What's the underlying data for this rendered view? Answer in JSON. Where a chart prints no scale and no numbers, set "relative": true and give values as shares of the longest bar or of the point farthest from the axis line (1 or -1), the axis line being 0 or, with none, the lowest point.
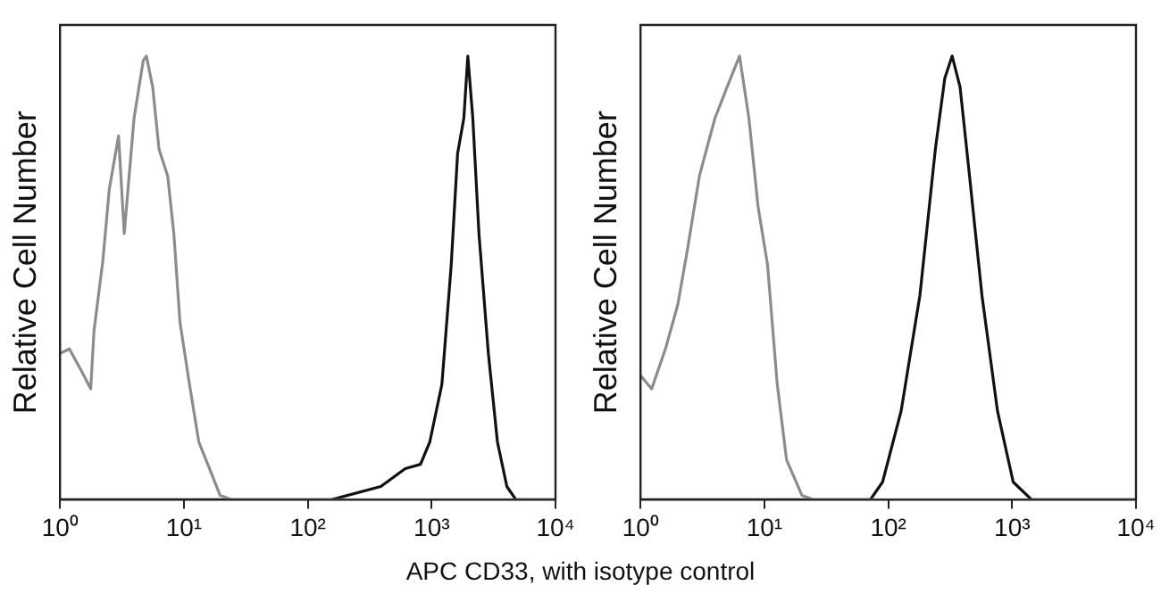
{
  "chart_data": [
    {
      "type": "line",
      "relative": true,
      "log": "x",
      "grid": false,
      "legend": false,
      "marker": "none",
      "line_style": "solid",
      "ylabel": "Relative Cell Number",
      "xlabel": "APC CD33, with isotype control",
      "xlim": [
        1,
        10000
      ],
      "xticks": [
        {
          "value": 1,
          "label": "10⁰"
        },
        {
          "value": 10,
          "label": "10¹"
        },
        {
          "value": 100,
          "label": "10²"
        },
        {
          "value": 1000,
          "label": "10³"
        },
        {
          "value": 10000,
          "label": "10⁴"
        }
      ],
      "series": [
        {
          "color": "#8c8c8c",
          "x": [
            1,
            1.19,
            1.49,
            1.77,
            1.88,
            2.22,
            2.5,
            2.97,
            3.3,
            3.96,
            4.7,
            4.98,
            5.6,
            6.3,
            7.4,
            8.3,
            9.3,
            11.1,
            13.2,
            15.6,
            19.6,
            24.6,
            10000
          ],
          "values": [
            0.33,
            0.34,
            0.29,
            0.25,
            0.38,
            0.54,
            0.7,
            0.82,
            0.6,
            0.86,
            0.99,
            1,
            0.93,
            0.79,
            0.73,
            0.6,
            0.4,
            0.26,
            0.13,
            0.08,
            0.01,
            0,
            0
          ]
        },
        {
          "color": "#111111",
          "x": [
            1,
            155,
            389,
            612,
            813,
            966,
            1210,
            1440,
            1620,
            1820,
            1960,
            2150,
            2410,
            2870,
            3400,
            4050,
            4800,
            10000
          ],
          "values": [
            0,
            0,
            0.03,
            0.07,
            0.08,
            0.13,
            0.26,
            0.53,
            0.78,
            0.86,
            1,
            0.86,
            0.6,
            0.33,
            0.13,
            0.03,
            0,
            0
          ]
        }
      ]
    },
    {
      "type": "line",
      "relative": true,
      "log": "x",
      "grid": false,
      "legend": false,
      "marker": "none",
      "line_style": "solid",
      "ylabel": "Relative Cell Number",
      "xlim": [
        1,
        10000
      ],
      "xticks": [
        {
          "value": 1,
          "label": "10⁰"
        },
        {
          "value": 10,
          "label": "10¹"
        },
        {
          "value": 100,
          "label": "10²"
        },
        {
          "value": 1000,
          "label": "10³"
        },
        {
          "value": 10000,
          "label": "10⁴"
        }
      ],
      "series": [
        {
          "color": "#8c8c8c",
          "x": [
            1,
            1.23,
            1.59,
            2,
            2.38,
            2.99,
            3.99,
            5,
            6.3,
            7.5,
            8.9,
            10.6,
            12.7,
            15.1,
            20.1,
            25.3,
            10000
          ],
          "values": [
            0.28,
            0.25,
            0.34,
            0.44,
            0.56,
            0.73,
            0.86,
            0.93,
            1,
            0.86,
            0.66,
            0.53,
            0.26,
            0.09,
            0.01,
            0,
            0
          ]
        },
        {
          "color": "#111111",
          "x": [
            1,
            71.6,
            90,
            127,
            180,
            240,
            286,
            328,
            380,
            453,
            571,
            762,
            1020,
            1440,
            10000
          ],
          "values": [
            0,
            0,
            0.04,
            0.2,
            0.46,
            0.79,
            0.95,
            1,
            0.93,
            0.73,
            0.46,
            0.2,
            0.04,
            0,
            0
          ]
        }
      ]
    }
  ]
}
